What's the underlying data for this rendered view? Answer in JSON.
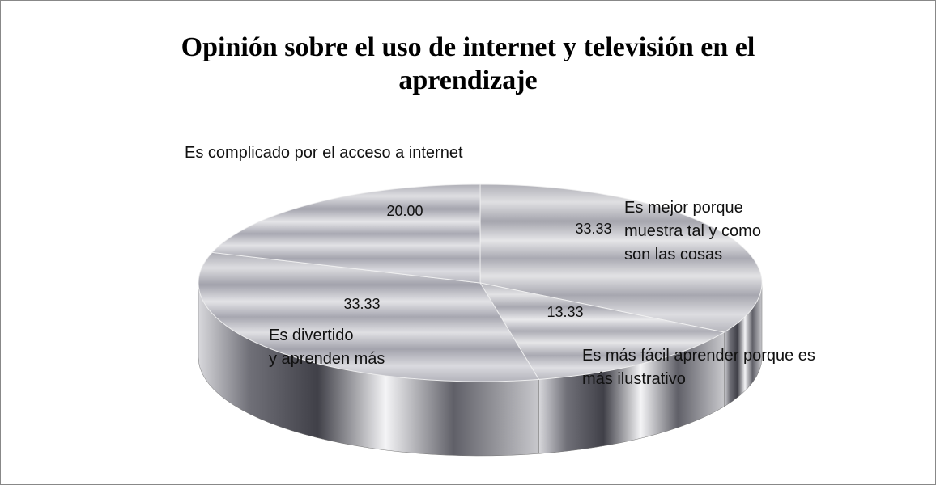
{
  "chart_data": {
    "type": "pie",
    "title": "Opinión sobre el uso  de internet y televisión en el aprendizaje",
    "categories": [
      "Es mejor porque\nmuestra tal y como\nson las cosas",
      "Es más fácil aprender porque es\nmás ilustrativo",
      "Es divertido\n y aprenden más",
      "Es complicado por el acceso a internet"
    ],
    "values": [
      33.33,
      13.33,
      33.33,
      20.0
    ],
    "value_labels": [
      "33.33",
      "13.33",
      "33.33",
      "20.00"
    ],
    "colors": [
      "#c8c8cc",
      "#d2d2d6",
      "#bcbcc2",
      "#c4c4ca"
    ]
  }
}
